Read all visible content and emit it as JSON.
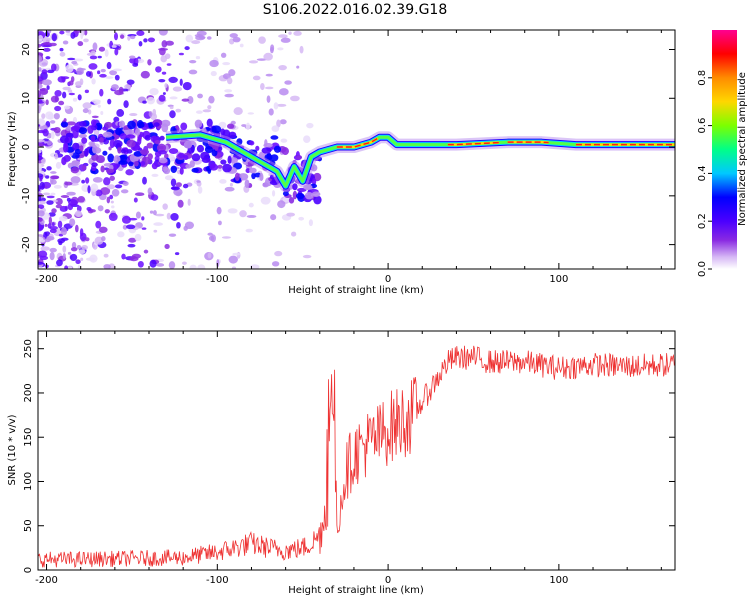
{
  "figure": {
    "title": "S106.2022.016.02.39.G18"
  },
  "chart_data": [
    {
      "type": "heatmap",
      "title": "S106.2022.016.02.39.G18",
      "xlabel": "Height of straight line (km)",
      "ylabel": "Frequency (Hz)",
      "xlim": [
        -205,
        168
      ],
      "ylim": [
        -25,
        24
      ],
      "xticks": [
        -200,
        -100,
        0,
        100
      ],
      "yticks": [
        -20,
        -10,
        0,
        10,
        20
      ],
      "colorbar": {
        "label": "Normalized spectral amplitude",
        "range": [
          0,
          1
        ],
        "ticks": [
          0.0,
          0.2,
          0.4,
          0.6,
          0.8
        ],
        "colors": [
          "#ffffff",
          "#d6b8f5",
          "#8a2be2",
          "#4b00ff",
          "#0000ff",
          "#00c8ff",
          "#00ff88",
          "#7cff00",
          "#ffd700",
          "#ff8c00",
          "#ff0000",
          "#ff0090"
        ]
      },
      "ridge": {
        "x": [
          -130,
          -110,
          -95,
          -85,
          -75,
          -65,
          -60,
          -55,
          -50,
          -45,
          -40,
          -30,
          -20,
          -10,
          -5,
          0,
          5,
          15,
          40,
          70,
          90,
          110,
          140,
          168
        ],
        "y": [
          2,
          2.5,
          1,
          -1,
          -3,
          -5,
          -8,
          -4,
          -7,
          -2,
          -1,
          0,
          0,
          1,
          2,
          2,
          0.5,
          0.5,
          0.5,
          1,
          1,
          0.5,
          0.5,
          0.5
        ]
      }
    },
    {
      "type": "line",
      "xlabel": "Height of straight line (km)",
      "ylabel": "SNR (10 * v/v)",
      "xlim": [
        -205,
        168
      ],
      "ylim": [
        0,
        270
      ],
      "xticks": [
        -200,
        -100,
        0,
        100
      ],
      "yticks": [
        0,
        50,
        100,
        150,
        200,
        250
      ],
      "color": "#ee3333",
      "series": [
        {
          "name": "SNR",
          "x": [
            -205,
            -180,
            -150,
            -120,
            -100,
            -90,
            -80,
            -70,
            -60,
            -50,
            -45,
            -40,
            -35,
            -33,
            -30,
            -25,
            -20,
            -15,
            -10,
            -5,
            0,
            5,
            10,
            15,
            20,
            25,
            30,
            35,
            40,
            50,
            60,
            80,
            100,
            120,
            140,
            168
          ],
          "y": [
            12,
            12,
            13,
            14,
            20,
            25,
            30,
            25,
            22,
            25,
            30,
            40,
            80,
            230,
            50,
            110,
            130,
            140,
            145,
            150,
            160,
            165,
            170,
            175,
            190,
            205,
            220,
            235,
            240,
            240,
            235,
            235,
            228,
            232,
            230,
            232
          ]
        }
      ]
    }
  ]
}
